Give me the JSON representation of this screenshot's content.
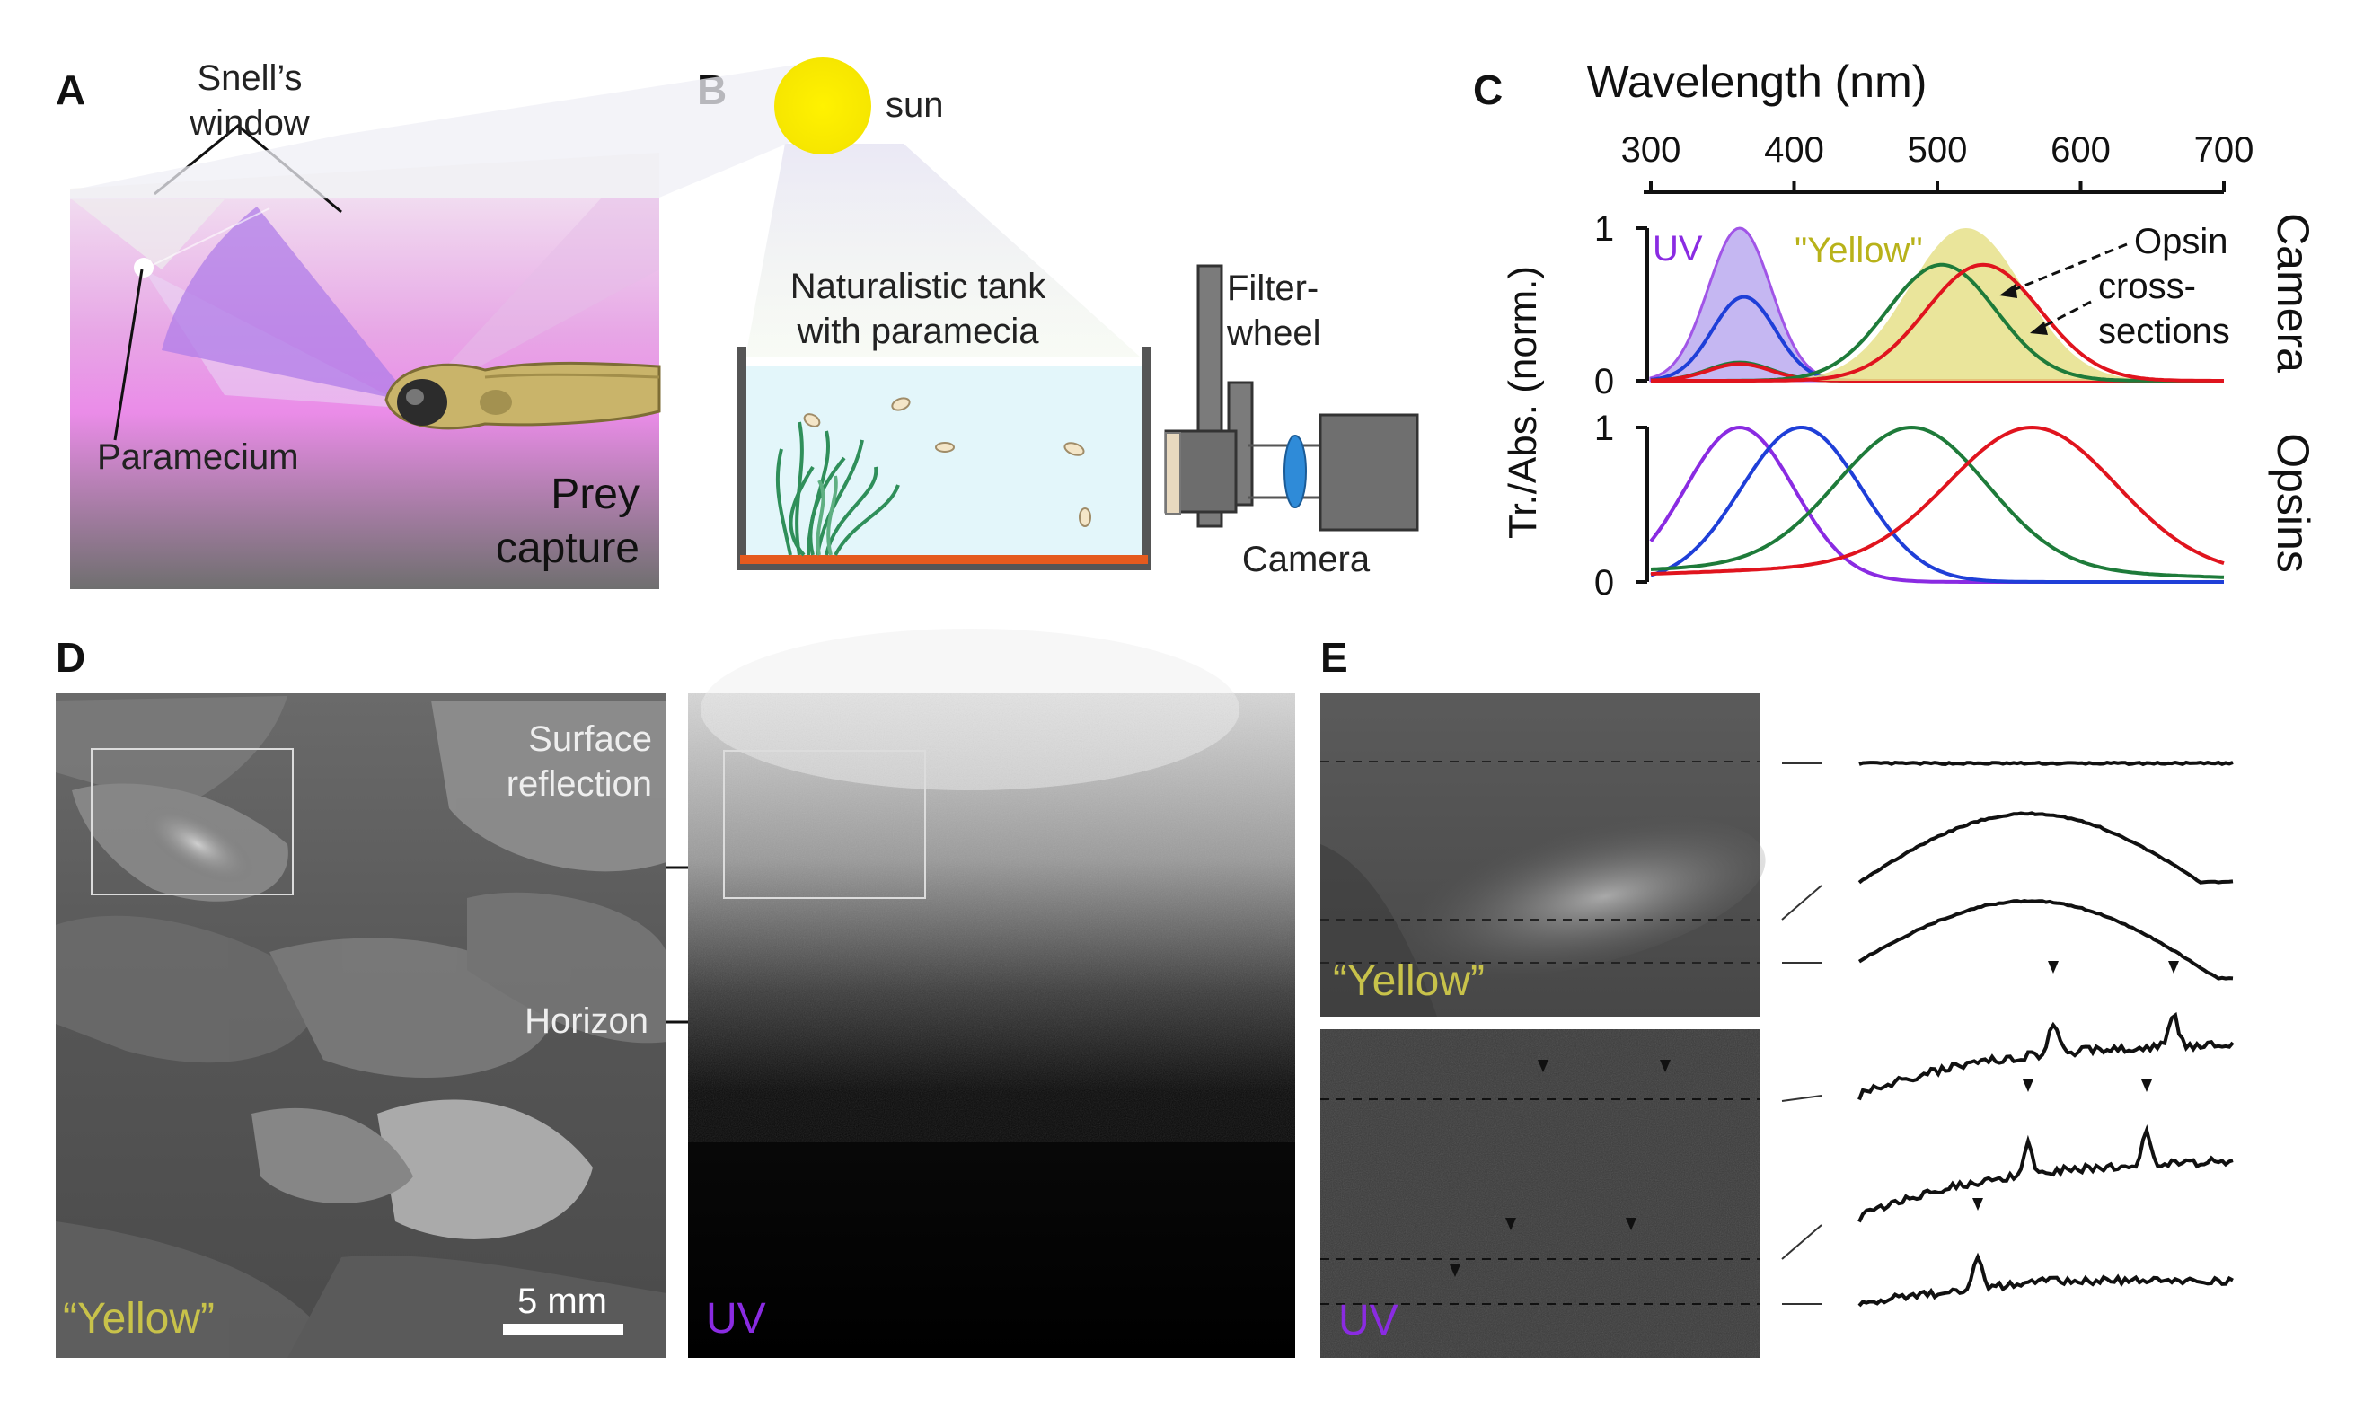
{
  "panels": {
    "a": {
      "letter": "A",
      "snells_window": [
        "Snell’s",
        "window"
      ],
      "paramecium": "Paramecium",
      "prey_capture": [
        "Prey",
        "capture"
      ]
    },
    "b": {
      "letter": "B",
      "sun": "sun",
      "tank": [
        "Naturalistic tank",
        "with paramecia"
      ],
      "filter_wheel": [
        "Filter-",
        "wheel"
      ],
      "camera": "Camera"
    },
    "c": {
      "letter": "C",
      "xlabel": "Wavelength (nm)",
      "ylabel": "Tr./Abs. (norm.)",
      "row_camera": "Camera",
      "row_opsins": "Opsins",
      "uv": "UV",
      "yellow": "\"Yellow\"",
      "annotation": [
        "Opsin",
        "cross-",
        "sections"
      ]
    },
    "d": {
      "letter": "D",
      "surface": [
        "Surface",
        "reflection"
      ],
      "horizon": "Horizon",
      "yellow": "“Yellow”",
      "uv": "UV",
      "scalebar": "5 mm"
    },
    "e": {
      "letter": "E",
      "yellow": "“Yellow”",
      "uv": "UV"
    }
  },
  "colors": {
    "uv": "#8a2be2",
    "blue": "#1f3fd8",
    "green": "#1e7b3a",
    "red": "#e0141e",
    "yellow_fill": "#e6e08a",
    "yellow_text": "#b8b21a",
    "violet_fill": "#b7a6f0"
  },
  "chart_data": [
    {
      "type": "line",
      "row": "Camera",
      "xlabel": "Wavelength (nm)",
      "ylabel": "Tr./Abs. (norm.)",
      "xlim": [
        300,
        700
      ],
      "xticks": [
        300,
        400,
        500,
        600,
        700
      ],
      "ylim": [
        0,
        1
      ],
      "yticks": [
        0,
        1
      ],
      "series": [
        {
          "name": "UV",
          "kind": "filled",
          "color": "#8a2be2",
          "peak": 362,
          "width": 22,
          "amp": 1.0
        },
        {
          "kind": "curve",
          "color": "#1f3fd8",
          "peak": 365,
          "width": 22,
          "amp": 0.55
        },
        {
          "kind": "curve",
          "color": "#1e7b3a",
          "peak": 362,
          "width": 22,
          "amp": 0.12
        },
        {
          "kind": "curve",
          "color": "#e0141e",
          "peak": 362,
          "width": 22,
          "amp": 0.11
        },
        {
          "name": "\"Yellow\"",
          "kind": "filled",
          "color": "#e6e08a",
          "peak": 520,
          "width": 40,
          "amp": 1.0
        },
        {
          "kind": "curve",
          "color": "#1e7b3a",
          "peak": 503,
          "width": 38,
          "amp": 0.76
        },
        {
          "kind": "curve",
          "color": "#e0141e",
          "peak": 532,
          "width": 40,
          "amp": 0.76
        }
      ]
    },
    {
      "type": "line",
      "row": "Opsins",
      "xlim": [
        300,
        700
      ],
      "ylim": [
        0,
        1
      ],
      "yticks": [
        0,
        1
      ],
      "series": [
        {
          "color": "#8a2be2",
          "peak": 362,
          "width": 38,
          "amp": 1.0,
          "base": 0.0
        },
        {
          "color": "#1f3fd8",
          "peak": 405,
          "width": 42,
          "amp": 1.0,
          "base": 0.0
        },
        {
          "color": "#1e7b3a",
          "peak": 482,
          "width": 52,
          "amp": 1.0,
          "base": 0.1
        },
        {
          "color": "#e0141e",
          "peak": 566,
          "width": 58,
          "amp": 1.0,
          "base": 0.1
        }
      ]
    }
  ]
}
